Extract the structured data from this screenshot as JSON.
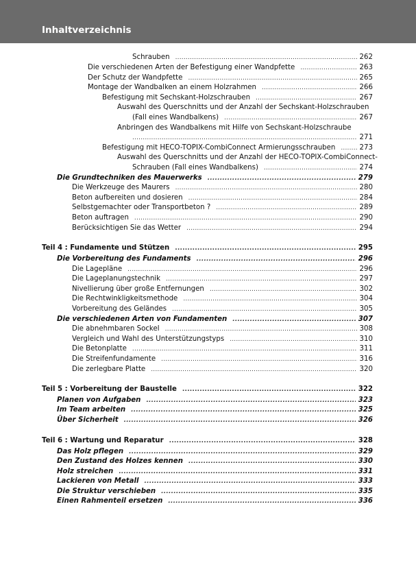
{
  "header": {
    "title": "Inhaltverzeichnis",
    "color": "#6b6b6b"
  },
  "entries": [
    {
      "level": 4,
      "text": "Schrauben",
      "page": "262"
    },
    {
      "level": 2,
      "text": "Die verschiedenen Arten der Befestigung einer Wandpfette",
      "page": "263"
    },
    {
      "level": 2,
      "text": "Der Schutz der Wandpfette",
      "page": "265"
    },
    {
      "level": 2,
      "text": "Montage der Wandbalken an einem Holzrahmen",
      "page": "266"
    },
    {
      "level": 3,
      "text": "Befestigung mit Sechskant-Holzschrauben",
      "page": "267"
    },
    {
      "level": 3.5,
      "text": "Auswahl des Querschnitts und der Anzahl der Sechskant-Holzschrauben",
      "page": ""
    },
    {
      "level": 4,
      "text": "(Fall eines Wandbalkens)",
      "page": "267"
    },
    {
      "level": 3.5,
      "text": "Anbringen des Wandbalkens mit Hilfe von Sechskant-Holzschraube",
      "page": ""
    },
    {
      "level": 4,
      "text": "",
      "page": "271"
    },
    {
      "level": 3,
      "text": "Befestigung mit HECO-TOPIX-CombiConnect Armierungsschrauben",
      "page": "273"
    },
    {
      "level": 3.5,
      "text": "Auswahl des Querschnitts und der Anzahl der HECO-TOPIX-CombiConnect-",
      "page": ""
    },
    {
      "level": 4,
      "text": "Schrauben (Fall eines Wandbalkens)",
      "page": "274"
    },
    {
      "level": 0.5,
      "style": "chapter",
      "text": "Die Grundtechniken des Mauerwerks",
      "page": "279"
    },
    {
      "level": 1,
      "text": "Die Werkzeuge des Maurers",
      "page": "280"
    },
    {
      "level": 1,
      "text": "Beton aufbereiten und dosieren",
      "page": "284"
    },
    {
      "level": 1,
      "text": "Selbstgemachter oder Transportbeton ?",
      "page": "289"
    },
    {
      "level": 1,
      "text": "Beton auftragen",
      "page": "290"
    },
    {
      "level": 1,
      "text": "Berücksichtigen Sie das Wetter",
      "page": "294"
    },
    {
      "level": 0,
      "style": "part",
      "text": "Teil 4 : Fundamente und Stützen",
      "page": "295"
    },
    {
      "level": 0.5,
      "style": "chapter",
      "text": "Die Vorbereitung des Fundaments",
      "page": "296"
    },
    {
      "level": 1,
      "text": "Die Lagepläne",
      "page": "296"
    },
    {
      "level": 1,
      "text": "Die Lageplanungstechnik",
      "page": "297"
    },
    {
      "level": 1,
      "text": "Nivellierung über große Entfernungen",
      "page": "302"
    },
    {
      "level": 1,
      "text": "Die Rechtwinkligkeitsmethode",
      "page": "304"
    },
    {
      "level": 1,
      "text": "Vorbereitung des Geländes",
      "page": "305"
    },
    {
      "level": 0.5,
      "style": "chapter",
      "text": "Die verschiedenen Arten von Fundamenten",
      "page": "307"
    },
    {
      "level": 1,
      "text": "Die abnehmbaren Sockel",
      "page": "308"
    },
    {
      "level": 1,
      "text": "Vergleich und Wahl des Unterstützungstyps",
      "page": "310"
    },
    {
      "level": 1,
      "text": "Die Betonplatte",
      "page": "311"
    },
    {
      "level": 1,
      "text": "Die Streifenfundamente",
      "page": "316"
    },
    {
      "level": 1,
      "text": "Die zerlegbare Platte",
      "page": "320"
    },
    {
      "level": 0,
      "style": "part",
      "text": "Teil 5 : Vorbereitung der Baustelle",
      "page": "322"
    },
    {
      "level": 0.5,
      "style": "chapter",
      "text": "Planen von Aufgaben",
      "page": "323"
    },
    {
      "level": 0.5,
      "style": "chapter",
      "text": "Im Team arbeiten",
      "page": "325"
    },
    {
      "level": 0.5,
      "style": "chapter",
      "text": "Über Sicherheit",
      "page": "326"
    },
    {
      "level": 0,
      "style": "part",
      "text": "Teil 6 : Wartung und Reparatur",
      "page": "328"
    },
    {
      "level": 0.5,
      "style": "chapter",
      "text": "Das Holz pflegen",
      "page": "329"
    },
    {
      "level": 0.5,
      "style": "chapter",
      "text": "Den Zustand des Holzes kennen",
      "page": "330"
    },
    {
      "level": 0.5,
      "style": "chapter",
      "text": "Holz streichen",
      "page": "331"
    },
    {
      "level": 0.5,
      "style": "chapter",
      "text": "Lackieren von Metall",
      "page": "333"
    },
    {
      "level": 0.5,
      "style": "chapter",
      "text": "Die Struktur verschieben",
      "page": "335"
    },
    {
      "level": 0.5,
      "style": "chapter",
      "text": "Einen Rahmenteil ersetzen",
      "page": "336"
    }
  ]
}
